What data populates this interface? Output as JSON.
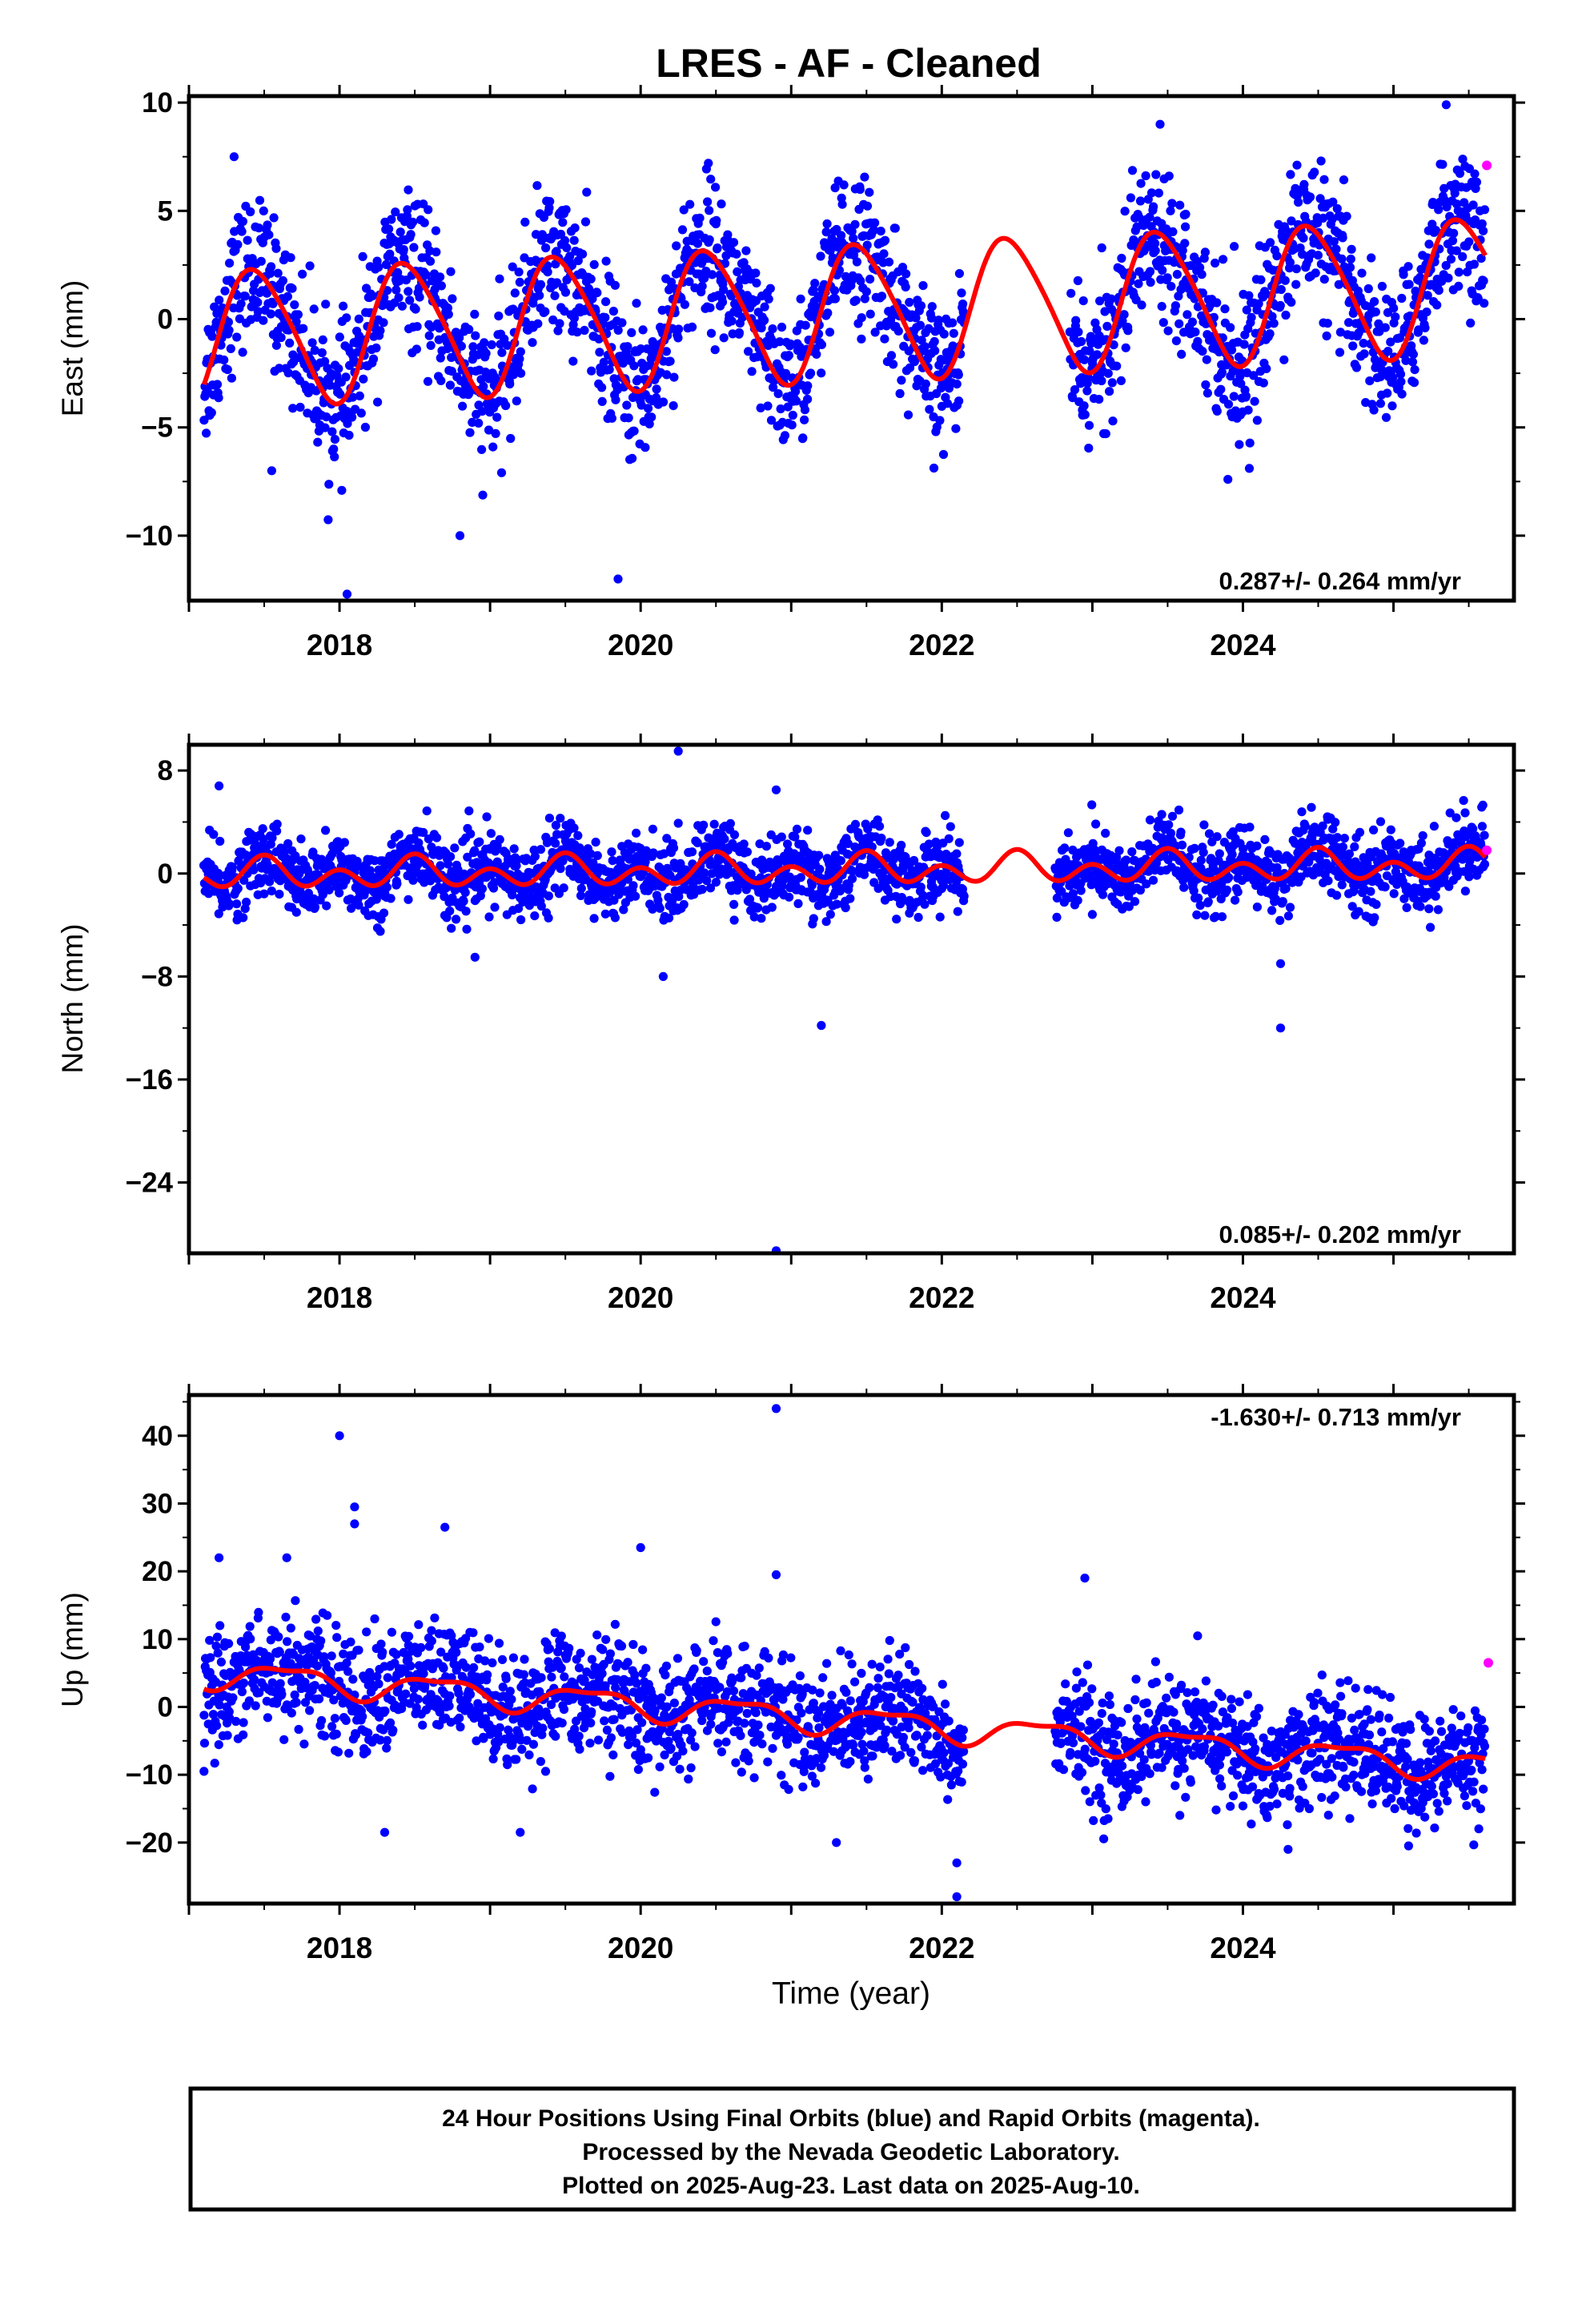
{
  "figure": {
    "title": "LRES  - AF - Cleaned",
    "xlabel": "Time (year)",
    "footer_lines": [
      "24 Hour Positions Using Final Orbits (blue) and Rapid Orbits (magenta).",
      "Processed by the Nevada Geodetic Laboratory.",
      "Plotted on 2025-Aug-23. Last data on 2025-Aug-10."
    ],
    "colors": {
      "final_orbits": "#0000ff",
      "rapid_orbits": "#ff00ff",
      "model_fit": "#ff0000",
      "frame": "#000000"
    }
  },
  "chart_data": [
    {
      "type": "scatter",
      "ylabel": "East (mm)",
      "rate_label": "0.287+/- 0.264 mm/yr",
      "rate_position": "bottom-right",
      "xlim": [
        2017.0,
        2025.8
      ],
      "ylim": [
        -13.0,
        10.3
      ],
      "xticks": [
        2018,
        2020,
        2022,
        2024
      ],
      "xtick_labels": [
        "2018",
        "2020",
        "2022",
        "2024"
      ],
      "yticks": [
        -10,
        -5,
        0,
        5,
        10
      ],
      "ytick_labels": [
        "−10",
        "−5",
        "0",
        "5",
        "10"
      ],
      "data_start": 2017.1,
      "data_end": 2025.61,
      "data_gap": [
        2022.15,
        2022.85
      ],
      "grid": false,
      "series": [
        {
          "kind": "points",
          "color": "#0000ff",
          "approx_count": 2400,
          "noise_sd": 1.6,
          "outliers": [
            [
              2017.3,
              7.5
            ],
            [
              2017.55,
              -7.0
            ],
            [
              2018.05,
              -12.7
            ],
            [
              2018.8,
              -10.0
            ],
            [
              2019.85,
              -12.0
            ],
            [
              2020.45,
              7.2
            ],
            [
              2021.35,
              6.2
            ],
            [
              2023.45,
              9.0
            ],
            [
              2023.9,
              -7.4
            ],
            [
              2025.35,
              9.9
            ]
          ]
        },
        {
          "kind": "points",
          "color": "#ff00ff",
          "points": [
            [
              2025.62,
              7.1
            ]
          ]
        },
        {
          "kind": "model",
          "color": "#ff0000",
          "offset": -0.9,
          "slope": 0.287,
          "ref_year": 2017.0,
          "annual": {
            "amplitude": 3.1,
            "peak": 2017.45
          },
          "semiannual": {
            "amplitude": 0.4,
            "peak": 2017.3
          },
          "amplitude_growth_per_year": 0.0
        }
      ]
    },
    {
      "type": "scatter",
      "ylabel": "North (mm)",
      "rate_label": "0.085+/- 0.202 mm/yr",
      "rate_position": "bottom-right",
      "xlim": [
        2017.0,
        2025.8
      ],
      "ylim": [
        -29.5,
        10.0
      ],
      "xticks": [
        2018,
        2020,
        2022,
        2024
      ],
      "xtick_labels": [
        "2018",
        "2020",
        "2022",
        "2024"
      ],
      "yticks": [
        -24,
        -16,
        -8,
        0,
        8
      ],
      "ytick_labels": [
        "−24",
        "−16",
        "−8",
        "0",
        "8"
      ],
      "data_start": 2017.1,
      "data_end": 2025.61,
      "data_gap": [
        2022.15,
        2022.75
      ],
      "grid": false,
      "series": [
        {
          "kind": "points",
          "color": "#0000ff",
          "approx_count": 2400,
          "noise_sd": 1.4,
          "outliers": [
            [
              2017.2,
              6.8
            ],
            [
              2020.25,
              9.5
            ],
            [
              2020.9,
              6.5
            ],
            [
              2021.2,
              -11.8
            ],
            [
              2020.9,
              -29.3
            ],
            [
              2024.25,
              -7.0
            ],
            [
              2024.25,
              -12.0
            ],
            [
              2018.9,
              -6.5
            ],
            [
              2020.15,
              -8.0
            ]
          ]
        },
        {
          "kind": "points",
          "color": "#ff00ff",
          "points": [
            [
              2025.62,
              1.8
            ]
          ]
        },
        {
          "kind": "model",
          "color": "#ff0000",
          "offset": -0.1,
          "slope": 0.085,
          "ref_year": 2017.0,
          "annual": {
            "amplitude": 0.6,
            "peak": 2017.5
          },
          "semiannual": {
            "amplitude": 0.9,
            "peak": 2017.5
          },
          "amplitude_growth_per_year": 0.0
        }
      ]
    },
    {
      "type": "scatter",
      "ylabel": "Up (mm)",
      "rate_label": "-1.630+/- 0.713 mm/yr",
      "rate_position": "top-right",
      "xlim": [
        2017.0,
        2025.8
      ],
      "ylim": [
        -29.0,
        46.0
      ],
      "xticks": [
        2018,
        2020,
        2022,
        2024
      ],
      "xtick_labels": [
        "2018",
        "2020",
        "2022",
        "2024"
      ],
      "yticks": [
        -20,
        -10,
        0,
        10,
        20,
        30,
        40
      ],
      "ytick_labels": [
        "−20",
        "−10",
        "0",
        "10",
        "20",
        "30",
        "40"
      ],
      "data_start": 2017.1,
      "data_end": 2025.61,
      "data_gap": [
        2022.15,
        2022.75
      ],
      "grid": false,
      "series": [
        {
          "kind": "points",
          "color": "#0000ff",
          "approx_count": 2400,
          "noise_sd": 4.2,
          "outliers": [
            [
              2018.0,
              40.0
            ],
            [
              2018.1,
              29.5
            ],
            [
              2018.1,
              27.0
            ],
            [
              2018.7,
              26.5
            ],
            [
              2020.0,
              23.5
            ],
            [
              2020.9,
              44.0
            ],
            [
              2020.9,
              19.5
            ],
            [
              2017.2,
              22.0
            ],
            [
              2017.65,
              22.0
            ],
            [
              2018.3,
              -18.5
            ],
            [
              2019.2,
              -18.5
            ],
            [
              2021.3,
              -20.0
            ],
            [
              2022.1,
              -28.0
            ],
            [
              2022.1,
              -23.0
            ],
            [
              2022.95,
              19.0
            ],
            [
              2024.3,
              -21.0
            ],
            [
              2025.1,
              -20.5
            ],
            [
              2017.1,
              -9.5
            ]
          ]
        },
        {
          "kind": "points",
          "color": "#ff00ff",
          "points": [
            [
              2025.63,
              6.5
            ]
          ]
        },
        {
          "kind": "model",
          "color": "#ff0000",
          "offset": 5.2,
          "slope": -1.63,
          "ref_year": 2017.0,
          "annual": {
            "amplitude": 1.9,
            "peak": 2017.65
          },
          "semiannual": {
            "amplitude": 0.7,
            "peak": 2017.4
          },
          "amplitude_growth_per_year": 0.0
        }
      ]
    }
  ]
}
